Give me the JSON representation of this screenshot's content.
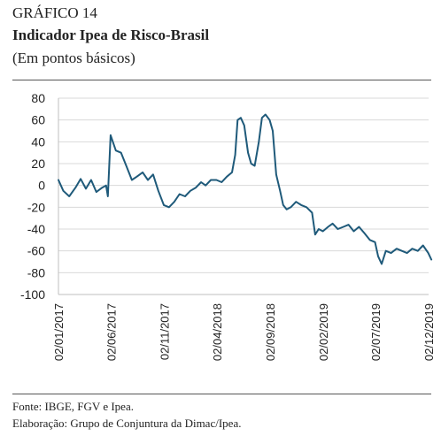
{
  "figure": {
    "number": "GRÁFICO 14",
    "title": "Indicador Ipea de Risco-Brasil",
    "unit": "(Em pontos básicos)"
  },
  "footer": {
    "source": "Fonte: IBGE, FGV e Ipea.",
    "credit": "Elaboração: Grupo de Conjuntura da Dimac/Ipea."
  },
  "chart_data": {
    "type": "line",
    "title": "Indicador Ipea de Risco-Brasil",
    "xlabel": "",
    "ylabel": "",
    "ylim": [
      -100,
      80
    ],
    "grid": "horizontal",
    "legend": "none",
    "color": "#1f5a7a",
    "yticks": [
      80,
      60,
      40,
      20,
      0,
      -20,
      -40,
      -60,
      -80,
      -100
    ],
    "xticks": [
      "02/01/2017",
      "02/06/2017",
      "02/11/2017",
      "02/04/2018",
      "02/09/2018",
      "02/02/2019",
      "02/07/2019",
      "02/12/2019"
    ],
    "series": [
      {
        "x": [
          "02/01/2017",
          "16/01/2017",
          "02/02/2017",
          "20/02/2017",
          "07/03/2017",
          "22/03/2017",
          "06/04/2017",
          "21/04/2017",
          "08/05/2017",
          "19/05/2017",
          "24/05/2017",
          "01/06/2017",
          "16/06/2017",
          "01/07/2017",
          "16/07/2017",
          "01/08/2017",
          "15/08/2017",
          "01/09/2017",
          "16/09/2017",
          "01/10/2017",
          "16/10/2017",
          "01/11/2017",
          "16/11/2017",
          "01/12/2017",
          "16/12/2017",
          "01/01/2018",
          "16/01/2018",
          "01/02/2018",
          "16/02/2018",
          "01/03/2018",
          "16/03/2018",
          "01/04/2018",
          "16/04/2018",
          "01/05/2018",
          "16/05/2018",
          "25/05/2018",
          "01/06/2018",
          "10/06/2018",
          "20/06/2018",
          "01/07/2018",
          "10/07/2018",
          "20/07/2018",
          "01/08/2018",
          "10/08/2018",
          "20/08/2018",
          "01/09/2018",
          "10/09/2018",
          "20/09/2018",
          "01/10/2018",
          "10/10/2018",
          "20/10/2018",
          "01/11/2018",
          "16/11/2018",
          "01/12/2018",
          "16/12/2018",
          "01/01/2019",
          "10/01/2019",
          "20/01/2019",
          "01/02/2019",
          "16/02/2019",
          "01/03/2019",
          "16/03/2019",
          "01/04/2019",
          "16/04/2019",
          "01/05/2019",
          "16/05/2019",
          "01/06/2019",
          "16/06/2019",
          "01/07/2019",
          "10/07/2019",
          "20/07/2019",
          "01/08/2019",
          "16/08/2019",
          "01/09/2019",
          "16/09/2019",
          "01/10/2019",
          "16/10/2019",
          "01/11/2019",
          "16/11/2019",
          "01/12/2019",
          "10/12/2019"
        ],
        "values": [
          5,
          -5,
          -10,
          -2,
          6,
          -3,
          5,
          -6,
          -2,
          0,
          -10,
          46,
          32,
          30,
          18,
          5,
          8,
          12,
          5,
          10,
          -5,
          -18,
          -20,
          -15,
          -8,
          -10,
          -5,
          -2,
          3,
          0,
          5,
          5,
          3,
          8,
          12,
          28,
          60,
          62,
          55,
          30,
          20,
          18,
          40,
          62,
          65,
          60,
          50,
          10,
          -5,
          -18,
          -22,
          -20,
          -15,
          -18,
          -20,
          -25,
          -45,
          -40,
          -42,
          -38,
          -35,
          -40,
          -38,
          -36,
          -42,
          -38,
          -44,
          -50,
          -52,
          -65,
          -72,
          -60,
          -62,
          -58,
          -60,
          -62,
          -58,
          -60,
          -55,
          -62,
          -68
        ]
      }
    ]
  }
}
